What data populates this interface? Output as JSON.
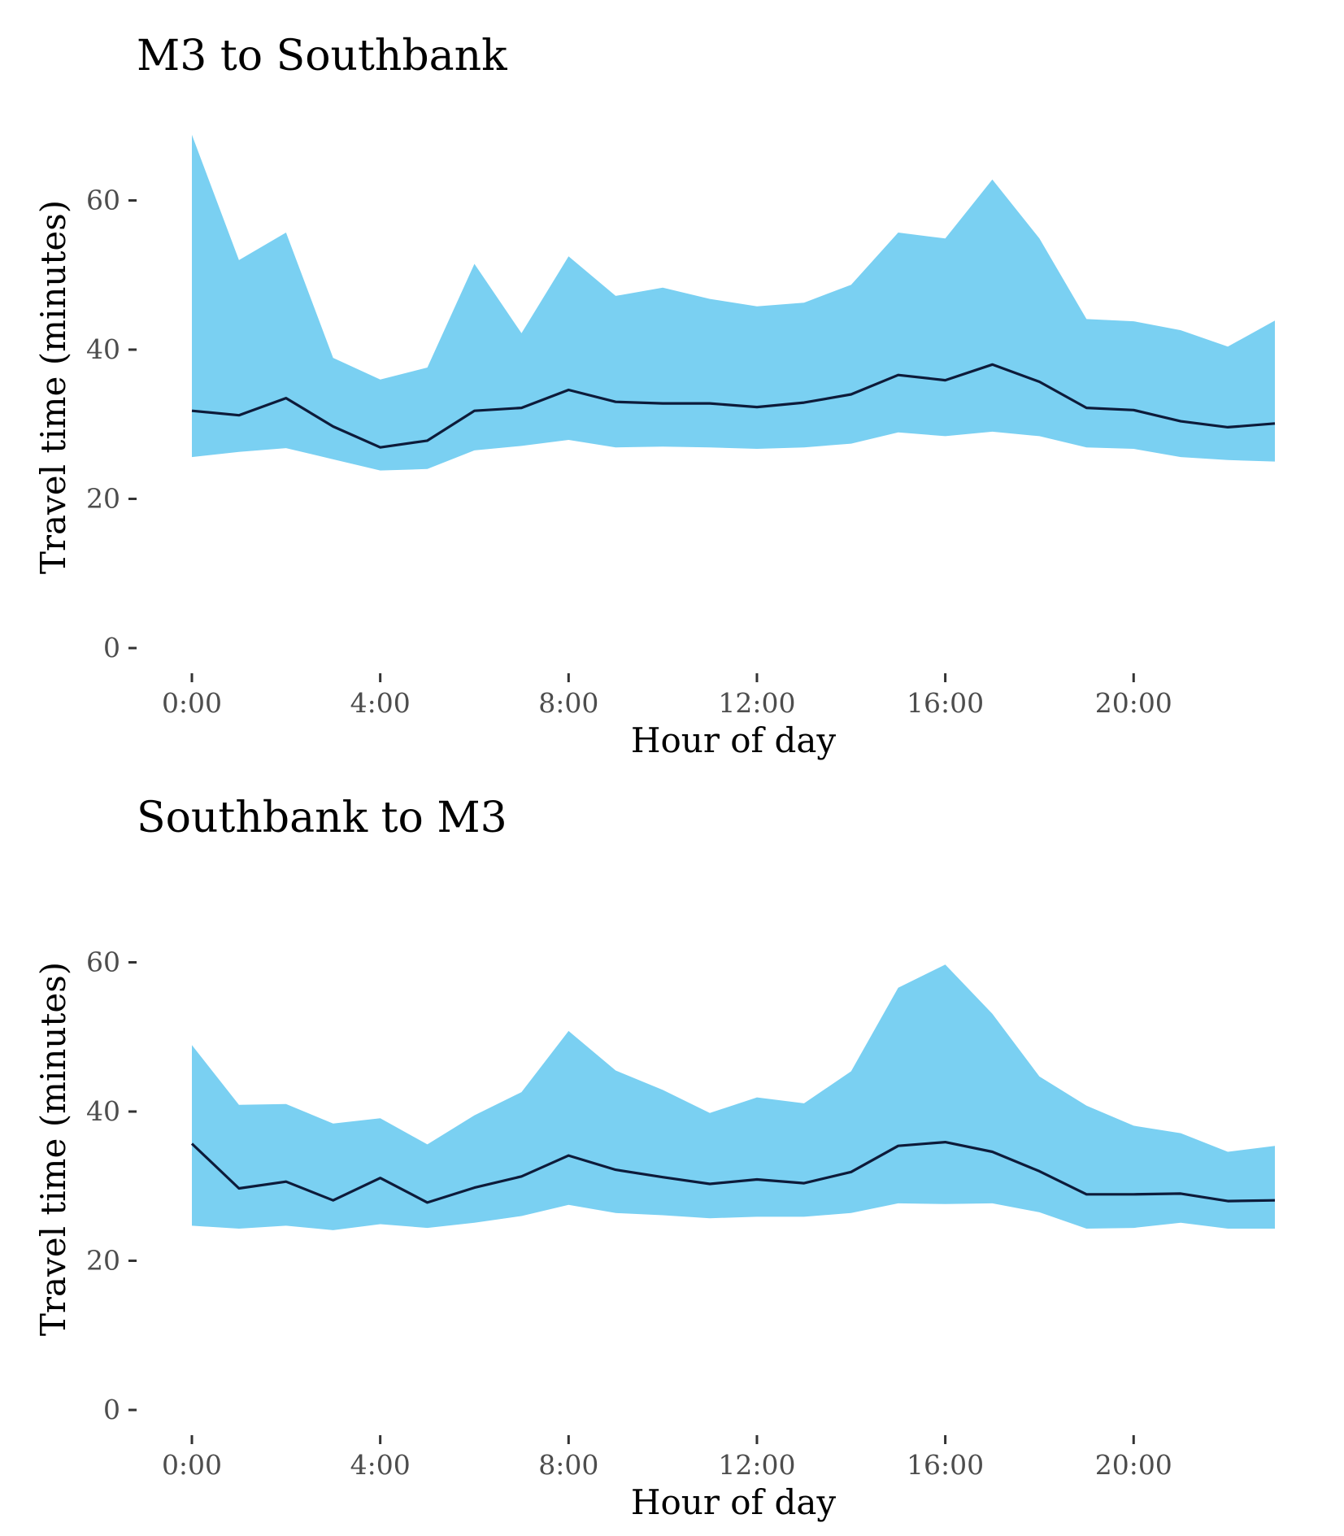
{
  "figure": {
    "band_color": "#7ad0f2",
    "line_color": "#0d1b3a",
    "background": "#ffffff"
  },
  "chart_data": [
    {
      "type": "area",
      "title": "M3 to Southbank",
      "xlabel": "Hour of day",
      "ylabel": "Travel time (minutes)",
      "x": [
        0,
        1,
        2,
        3,
        4,
        5,
        6,
        7,
        8,
        9,
        10,
        11,
        12,
        13,
        14,
        15,
        16,
        17,
        18,
        19,
        20,
        21,
        22,
        23
      ],
      "x_ticks": [
        0,
        4,
        8,
        12,
        16,
        20
      ],
      "x_tick_labels": [
        "0:00",
        "4:00",
        "8:00",
        "12:00",
        "16:00",
        "20:00"
      ],
      "y_ticks": [
        0,
        20,
        40,
        60
      ],
      "y_tick_labels": [
        "0",
        "20",
        "40",
        "60"
      ],
      "xlim": [
        0,
        23
      ],
      "ylim": [
        0,
        69
      ],
      "grid": false,
      "series": [
        {
          "role": "band-upper",
          "values": [
            68.8,
            52.0,
            55.7,
            38.9,
            36.0,
            37.6,
            51.5,
            42.2,
            52.5,
            47.2,
            48.3,
            46.8,
            45.8,
            46.3,
            48.7,
            55.7,
            54.9,
            62.8,
            54.9,
            44.1,
            43.8,
            42.6,
            40.4,
            43.9
          ]
        },
        {
          "role": "median",
          "values": [
            31.8,
            31.2,
            33.5,
            29.7,
            26.9,
            27.8,
            31.8,
            32.2,
            34.6,
            33.0,
            32.8,
            32.8,
            32.3,
            32.9,
            34.0,
            36.6,
            35.9,
            38.0,
            35.7,
            32.2,
            31.9,
            30.4,
            29.6,
            30.1
          ]
        },
        {
          "role": "band-lower",
          "values": [
            25.6,
            26.3,
            26.8,
            25.3,
            23.8,
            24.0,
            26.5,
            27.1,
            27.9,
            26.9,
            27.0,
            26.9,
            26.7,
            26.9,
            27.4,
            28.9,
            28.4,
            29.0,
            28.4,
            26.9,
            26.7,
            25.6,
            25.2,
            25.0
          ]
        }
      ]
    },
    {
      "type": "area",
      "title": "Southbank to M3",
      "xlabel": "Hour of day",
      "ylabel": "Travel time (minutes)",
      "x": [
        0,
        1,
        2,
        3,
        4,
        5,
        6,
        7,
        8,
        9,
        10,
        11,
        12,
        13,
        14,
        15,
        16,
        17,
        18,
        19,
        20,
        21,
        22,
        23
      ],
      "x_ticks": [
        0,
        4,
        8,
        12,
        16,
        20
      ],
      "x_tick_labels": [
        "0:00",
        "4:00",
        "8:00",
        "12:00",
        "16:00",
        "20:00"
      ],
      "y_ticks": [
        0,
        20,
        40,
        60
      ],
      "y_tick_labels": [
        "0",
        "20",
        "40",
        "60"
      ],
      "xlim": [
        0,
        23
      ],
      "ylim": [
        0,
        69
      ],
      "grid": false,
      "series": [
        {
          "role": "band-upper",
          "values": [
            48.9,
            40.9,
            41.0,
            38.4,
            39.1,
            35.6,
            39.5,
            42.6,
            50.8,
            45.5,
            42.9,
            39.8,
            41.9,
            41.1,
            45.4,
            56.6,
            59.7,
            53.1,
            44.7,
            40.8,
            38.1,
            37.1,
            34.6,
            35.4
          ]
        },
        {
          "role": "median",
          "values": [
            35.7,
            29.7,
            30.6,
            28.1,
            31.1,
            27.8,
            29.8,
            31.3,
            34.1,
            32.2,
            31.2,
            30.3,
            30.9,
            30.4,
            31.9,
            35.4,
            35.9,
            34.6,
            32.0,
            28.9,
            28.9,
            29.0,
            28.0,
            28.1
          ]
        },
        {
          "role": "band-lower",
          "values": [
            24.7,
            24.3,
            24.7,
            24.1,
            24.9,
            24.4,
            25.1,
            26.0,
            27.5,
            26.4,
            26.1,
            25.7,
            25.9,
            25.9,
            26.4,
            27.7,
            27.6,
            27.7,
            26.5,
            24.3,
            24.4,
            25.1,
            24.3,
            24.3
          ]
        }
      ]
    }
  ]
}
